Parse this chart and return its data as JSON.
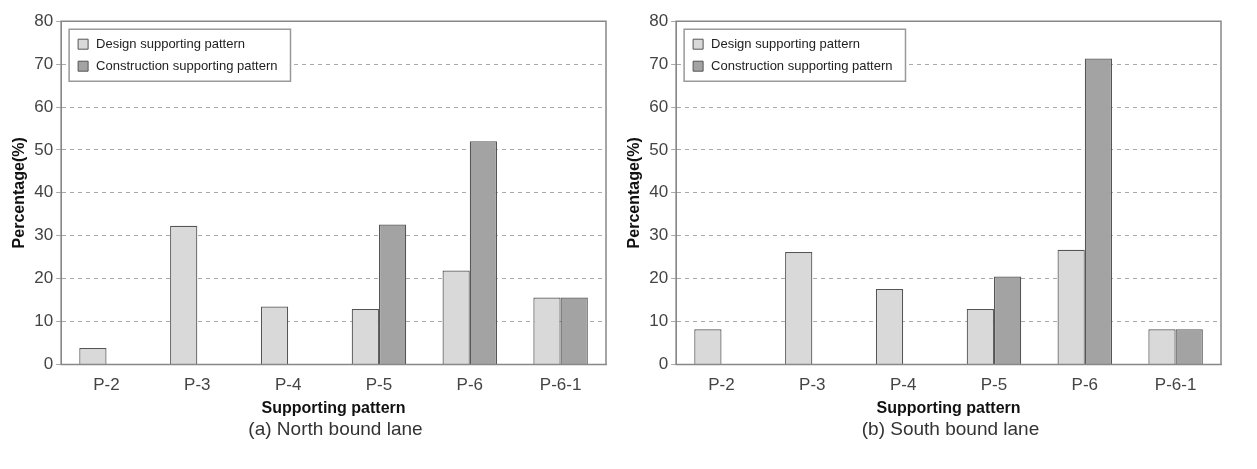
{
  "chart_data": [
    {
      "type": "bar",
      "xlabel": "Supporting pattern",
      "ylabel": "Percentage(%)",
      "annotations": [
        "(a) North bound lane"
      ],
      "categories": [
        "P-2",
        "P-3",
        "P-4",
        "P-5",
        "P-6",
        "P-6-1"
      ],
      "series": [
        {
          "name": "Design supporting pattern",
          "color": "#d9d9d9",
          "values": [
            3.8,
            32.3,
            13.5,
            12.9,
            21.9,
            15.6
          ]
        },
        {
          "name": "Construction supporting pattern",
          "color": "#a3a3a3",
          "values": [
            0,
            0,
            0,
            32.6,
            52,
            15.6
          ]
        }
      ],
      "ylim": [
        0,
        80
      ],
      "yticks": [
        0,
        10,
        20,
        30,
        40,
        50,
        60,
        70,
        80
      ],
      "grid": "y",
      "legend": "top left"
    },
    {
      "type": "bar",
      "xlabel": "Supporting pattern",
      "ylabel": "Percentage(%)",
      "annotations": [
        "(b) South bound lane"
      ],
      "categories": [
        "P-2",
        "P-3",
        "P-4",
        "P-5",
        "P-6",
        "P-6-1"
      ],
      "series": [
        {
          "name": "Design supporting pattern",
          "color": "#d9d9d9",
          "values": [
            8.2,
            26.2,
            17.6,
            12.9,
            26.7,
            8.2
          ]
        },
        {
          "name": "Construction supporting pattern",
          "color": "#a3a3a3",
          "values": [
            0,
            0,
            0,
            20.5,
            71.3,
            8.2
          ]
        }
      ],
      "ylim": [
        0,
        80
      ],
      "yticks": [
        0,
        10,
        20,
        30,
        40,
        50,
        60,
        70,
        80
      ],
      "grid": "y",
      "legend": "top left"
    }
  ]
}
